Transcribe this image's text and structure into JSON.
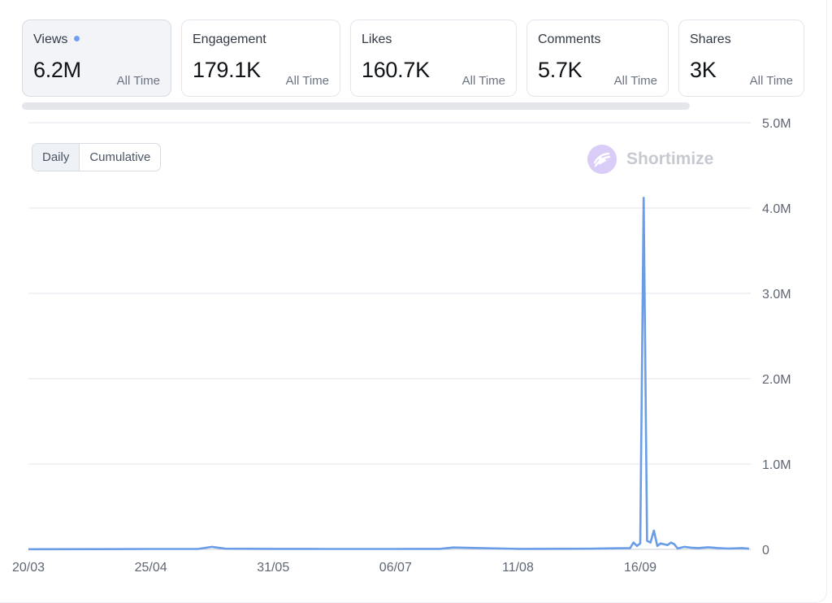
{
  "metrics": [
    {
      "label": "Views",
      "value": "6.2M",
      "period": "All Time",
      "active": true
    },
    {
      "label": "Engagement",
      "value": "179.1K",
      "period": "All Time",
      "active": false
    },
    {
      "label": "Likes",
      "value": "160.7K",
      "period": "All Time",
      "active": false
    },
    {
      "label": "Comments",
      "value": "5.7K",
      "period": "All Time",
      "active": false
    },
    {
      "label": "Shares",
      "value": "3K",
      "period": "All Time",
      "active": false
    }
  ],
  "toggle": {
    "daily": "Daily",
    "cumulative": "Cumulative",
    "selected": "Daily"
  },
  "watermark": {
    "brand": "Shortimize",
    "icon": "play-swoosh-icon"
  },
  "colors": {
    "accent": "#6f9ff0",
    "line": "#6a9de8",
    "dot": "#6f9ff0",
    "logo_bg": "#d9ccf7"
  },
  "chart_data": {
    "type": "line",
    "xlabel": "",
    "ylabel": "",
    "x_tick_labels": [
      "20/03",
      "25/04",
      "31/05",
      "06/07",
      "11/08",
      "16/09"
    ],
    "y_tick_labels": [
      "0",
      "1.0M",
      "2.0M",
      "3.0M",
      "4.0M",
      "5.0M"
    ],
    "y_ticks": [
      0,
      1000000,
      2000000,
      3000000,
      4000000,
      5000000
    ],
    "ylim": [
      0,
      5000000
    ],
    "grid": true,
    "series": [
      {
        "x": [
          "20/03",
          "10/04",
          "25/04",
          "09/05",
          "13/05",
          "17/05",
          "31/05",
          "15/06",
          "06/07",
          "19/07",
          "23/07",
          "11/08",
          "25/08",
          "01/09",
          "13/09",
          "14/09",
          "15/09",
          "16/09",
          "17/09",
          "18/09",
          "19/09",
          "20/09",
          "21/09",
          "22/09",
          "23/09",
          "24/09",
          "25/09",
          "26/09",
          "27/09",
          "28/09",
          "29/09",
          "30/09",
          "01/10",
          "03/10",
          "06/10",
          "09/10",
          "12/10",
          "16/10",
          "18/10"
        ],
        "values": [
          2000,
          3000,
          5000,
          6000,
          30000,
          8000,
          6000,
          5000,
          5000,
          6000,
          22000,
          6000,
          7000,
          8000,
          15000,
          80000,
          40000,
          70000,
          4120000,
          100000,
          80000,
          220000,
          40000,
          70000,
          60000,
          50000,
          80000,
          60000,
          10000,
          20000,
          30000,
          25000,
          20000,
          15000,
          25000,
          15000,
          10000,
          15000,
          8000
        ]
      }
    ]
  }
}
